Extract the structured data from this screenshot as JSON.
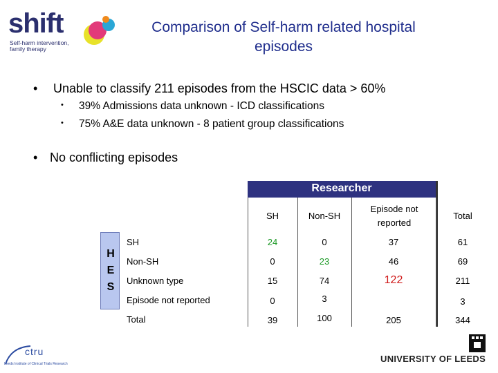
{
  "logo": {
    "word": "shift",
    "subtitle": "Self-harm intervention, family therapy",
    "dot_colors": [
      "#e8e22a",
      "#e23a7a",
      "#2aa7d6",
      "#f08a1c"
    ]
  },
  "title": {
    "line1": "Comparison of Self-harm related hospital",
    "line2": "episodes"
  },
  "bullets": {
    "b1": "Unable to classify 211 episodes from the HSCIC data   > 60%",
    "b1_sub1": "39% Admissions data unknown - ICD classifications",
    "b1_sub2": "75% A&E data unknown - 8 patient group classifications",
    "b2": "No conflicting episodes",
    "main_marker": "•",
    "sub_marker": "•"
  },
  "table": {
    "header": "Researcher",
    "side_label": [
      "H",
      "E",
      "S"
    ],
    "col_headers": [
      "SH",
      "Non-SH",
      "Episode not reported",
      "Total"
    ],
    "rows": [
      {
        "label": "SH",
        "cells": [
          "24",
          "0",
          "37",
          "61"
        ]
      },
      {
        "label": "Non-SH",
        "cells": [
          "0",
          "23",
          "46",
          "69"
        ]
      },
      {
        "label": "Unknown type",
        "cells": [
          "15",
          "74",
          "122",
          "211"
        ]
      },
      {
        "label": "Episode not reported",
        "cells": [
          "0",
          "3",
          "",
          "3"
        ]
      },
      {
        "label": "Total",
        "cells": [
          "39",
          "100",
          "205",
          "344"
        ]
      }
    ],
    "colors": {
      "header_bg": "#2e3280",
      "side_bg": "#b9c7ef",
      "green": "#1e9a28",
      "red": "#d01b1b"
    }
  },
  "footer": {
    "ctru": "ctru",
    "ctru_sub": "Leeds Institute of Clinical Trials Research",
    "university": "UNIVERSITY OF LEEDS"
  }
}
